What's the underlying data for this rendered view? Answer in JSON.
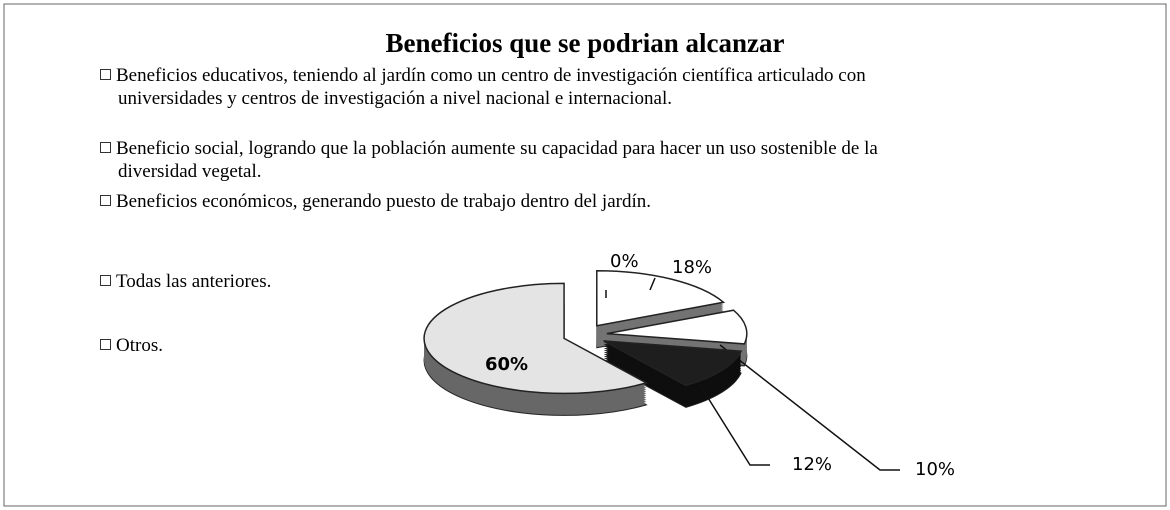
{
  "chart_data": {
    "type": "pie",
    "title": "Beneficios que se podrian alcanzar",
    "categories": [
      "Beneficios educativos, teniendo al jardín como un centro de investigación científica articulado con universidades y centros de investigación a nivel  nacional e internacional.",
      "Beneficio social, logrando que la población aumente su capacidad para hacer un uso sostenible de la diversidad vegetal.",
      "Beneficios económicos, generando puesto de trabajo dentro del jardín.",
      "Todas las anteriores.",
      "Otros."
    ],
    "values": [
      18,
      10,
      12,
      60,
      0
    ],
    "value_labels": [
      "18%",
      "10%",
      "12%",
      "60%",
      "0%"
    ],
    "colors": [
      "#ffffff",
      "#ffffff",
      "#1e1e1e",
      "#e4e4e4",
      "#ffffff"
    ]
  }
}
